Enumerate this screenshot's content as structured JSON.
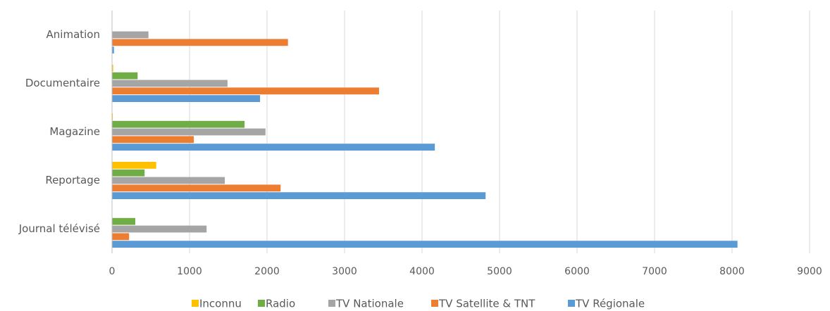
{
  "chart_data": {
    "type": "barh",
    "categories": [
      "Animation",
      "Documentaire",
      "Magazine",
      "Reportage",
      "Journal télévisé"
    ],
    "series": [
      {
        "name": "Inconnu",
        "color": "#ffc000",
        "values": [
          0,
          15,
          10,
          570,
          0
        ]
      },
      {
        "name": "Radio",
        "color": "#70ad47",
        "values": [
          0,
          330,
          1710,
          420,
          300
        ]
      },
      {
        "name": "TV Nationale",
        "color": "#a5a5a5",
        "values": [
          470,
          1490,
          1980,
          1455,
          1220
        ]
      },
      {
        "name": "TV Satellite & TNT",
        "color": "#ed7d31",
        "values": [
          2270,
          3445,
          1055,
          2175,
          220
        ]
      },
      {
        "name": "TV Régionale",
        "color": "#5b9bd5",
        "values": [
          25,
          1910,
          4165,
          4820,
          8070
        ]
      }
    ],
    "xlim": [
      0,
      9000
    ],
    "xticks": [
      0,
      1000,
      2000,
      3000,
      4000,
      5000,
      6000,
      7000,
      8000,
      9000
    ],
    "grid": true,
    "legend": "bottom"
  }
}
